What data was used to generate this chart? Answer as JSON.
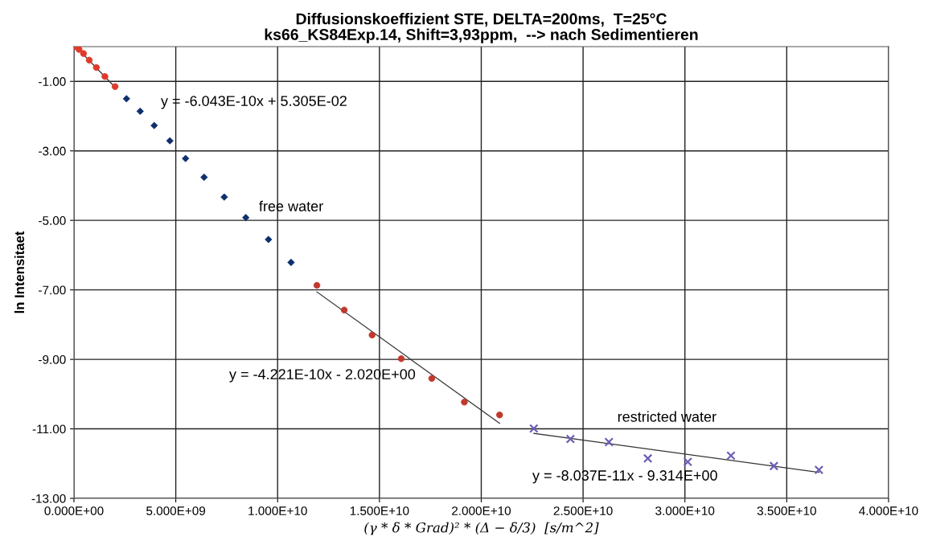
{
  "chart_data": {
    "type": "scatter",
    "title": "Diffusionskoeffizient STE, DELTA=200ms,  T=25°C\nks66_KS84Exp.14, Shift=3,93ppm,  --> nach Sedimentieren",
    "xlabel": "(γ * δ * Grad)² * (Δ − δ/3)  [s/m^2]",
    "ylabel": "ln Intensitaet",
    "xlim": [
      0,
      40000000000.0
    ],
    "xticks": [
      {
        "value": 0,
        "label": "0.000E+00"
      },
      {
        "value": 5000000000.0,
        "label": "5.000E+09"
      },
      {
        "value": 10000000000.0,
        "label": "1.000E+10"
      },
      {
        "value": 15000000000.0,
        "label": "1.500E+10"
      },
      {
        "value": 20000000000.0,
        "label": "2.000E+10"
      },
      {
        "value": 25000000000.0,
        "label": "2.500E+10"
      },
      {
        "value": 30000000000.0,
        "label": "3.000E+10"
      },
      {
        "value": 35000000000.0,
        "label": "3.500E+10"
      },
      {
        "value": 40000000000.0,
        "label": "4.000E+10"
      }
    ],
    "ylim": [
      -13,
      0
    ],
    "yticks": [
      {
        "value": -13,
        "label": "-13.00"
      },
      {
        "value": -11,
        "label": "-11.00"
      },
      {
        "value": -9,
        "label": "-9.00"
      },
      {
        "value": -7,
        "label": "-7.00"
      },
      {
        "value": -5,
        "label": "-5.00"
      },
      {
        "value": -3,
        "label": "-3.00"
      },
      {
        "value": -1,
        "label": "-1.00"
      }
    ],
    "grid": true,
    "series": [
      {
        "marker": "circle",
        "color": "#e03a2a",
        "x": [
          100000000.0,
          250000000.0,
          470000000.0,
          750000000.0,
          1100000000.0,
          1520000000.0,
          2020000000.0
        ],
        "values": [
          0,
          -0.08,
          -0.2,
          -0.39,
          -0.6,
          -0.86,
          -1.15
        ]
      },
      {
        "marker": "diamond",
        "color": "#0f2f6e",
        "x": [
          2580000000.0,
          3250000000.0,
          3940000000.0,
          4710000000.0,
          5480000000.0,
          6390000000.0,
          7380000000.0,
          8440000000.0,
          9550000000.0,
          10660000000.0
        ],
        "values": [
          -1.5,
          -1.86,
          -2.27,
          -2.71,
          -3.22,
          -3.76,
          -4.33,
          -4.92,
          -5.55,
          -6.21
        ]
      },
      {
        "marker": "circle",
        "color": "#c0392b",
        "x": [
          11930000000.0,
          13270000000.0,
          14640000000.0,
          16070000000.0,
          17570000000.0,
          19170000000.0,
          20900000000.0
        ],
        "values": [
          -6.87,
          -7.58,
          -8.3,
          -8.98,
          -9.55,
          -10.23,
          -10.6
        ]
      },
      {
        "marker": "cross",
        "color": "#6a5fb5",
        "x": [
          22580000000.0,
          24380000000.0,
          26270000000.0,
          28180000000.0,
          30140000000.0,
          32260000000.0,
          34370000000.0,
          36580000000.0
        ],
        "values": [
          -10.99,
          -11.29,
          -11.38,
          -11.85,
          -11.95,
          -11.77,
          -12.07,
          -12.18
        ]
      },
      {
        "type": "line",
        "color": "#333333",
        "x": [
          90000000.0,
          2020000000.0
        ],
        "values": [
          0,
          -1.17
        ]
      },
      {
        "type": "line",
        "color": "#333333",
        "x": [
          11930000000.0,
          20900000000.0
        ],
        "values": [
          -7.06,
          -10.84
        ]
      },
      {
        "type": "line",
        "color": "#333333",
        "x": [
          22580000000.0,
          36580000000.0
        ],
        "values": [
          -11.13,
          -12.25
        ]
      }
    ],
    "annotations": [
      "y = -6.043E-10x + 5.305E-02",
      "free water",
      "y = -4.221E-10x - 2.020E+00",
      "restricted water",
      "y = -8.037E-11x - 9.314E+00"
    ]
  }
}
